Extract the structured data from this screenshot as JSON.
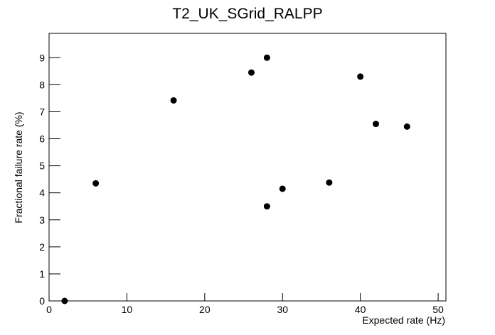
{
  "chart_data": {
    "type": "scatter",
    "title": "T2_UK_SGrid_RALPP",
    "x_label": "Expected rate (Hz)",
    "y_label": "Fractional failure rate (%)",
    "x": [
      2,
      6,
      16,
      26,
      28,
      28,
      30,
      36,
      40,
      42,
      46
    ],
    "values": [
      0,
      4.35,
      7.42,
      8.45,
      9.0,
      3.5,
      4.15,
      4.38,
      8.3,
      6.55,
      6.45
    ],
    "color": "#000000",
    "xlim": [
      0,
      51
    ],
    "xticks": [
      0,
      10,
      20,
      30,
      40,
      50
    ],
    "ylim": [
      0,
      9.9
    ],
    "yticks": [
      0,
      1,
      2,
      3,
      4,
      5,
      6,
      7,
      8,
      9
    ],
    "grid": false
  }
}
